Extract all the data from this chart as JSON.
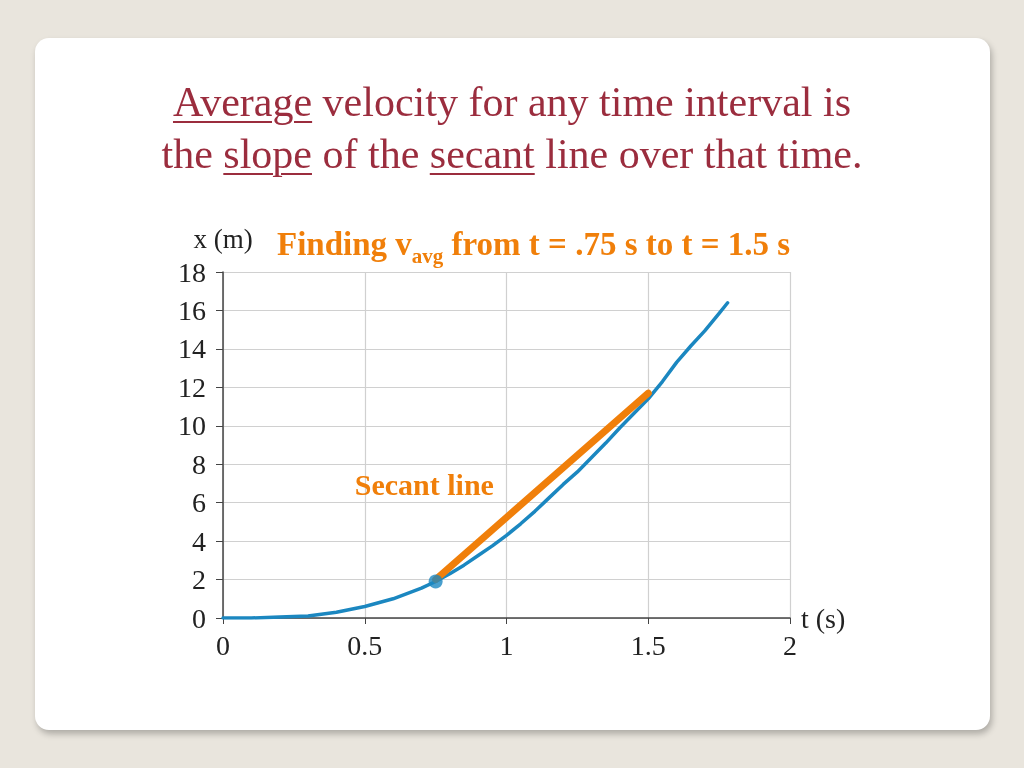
{
  "chart_data": {
    "type": "line",
    "title": "Average velocity for any time interval is the slope of the secant line over that time.",
    "subtitle": "Finding v$_{avg}$ from t = .75 s to t = 1.5 s",
    "xlabel": "t (s)",
    "ylabel": "x (m)",
    "xlim": [
      0,
      2
    ],
    "xticks": [
      0,
      0.5,
      1,
      1.5,
      2
    ],
    "ylim": [
      0,
      18
    ],
    "yticks": [
      0,
      2,
      4,
      6,
      8,
      10,
      12,
      14,
      16,
      18
    ],
    "grid": true,
    "marker": "none",
    "series": [
      {
        "color": "#1b87c0",
        "x": [
          0,
          0.1,
          0.2,
          0.3,
          0.4,
          0.5,
          0.6,
          0.7,
          0.75,
          0.8,
          0.85,
          0.9,
          0.95,
          1.0,
          1.05,
          1.1,
          1.15,
          1.2,
          1.25,
          1.3,
          1.35,
          1.4,
          1.45,
          1.5,
          1.55,
          1.6,
          1.65,
          1.7,
          1.75,
          1.78
        ],
        "values": [
          0,
          0,
          0.05,
          0.1,
          0.3,
          0.6,
          1.0,
          1.55,
          1.9,
          2.3,
          2.75,
          3.25,
          3.75,
          4.3,
          4.9,
          5.55,
          6.25,
          6.95,
          7.6,
          8.35,
          9.1,
          9.9,
          10.65,
          11.4,
          12.3,
          13.3,
          14.15,
          14.95,
          15.85,
          16.4
        ]
      },
      {
        "name": "Secant line",
        "color": "#f07f0a",
        "x": [
          0.75,
          1.5
        ],
        "values": [
          2,
          11.7
        ]
      },
      {
        "type": "scatter",
        "marker": "circle",
        "color": "#1b87c0",
        "x": [
          0.75
        ],
        "values": [
          1.9
        ]
      }
    ]
  }
}
